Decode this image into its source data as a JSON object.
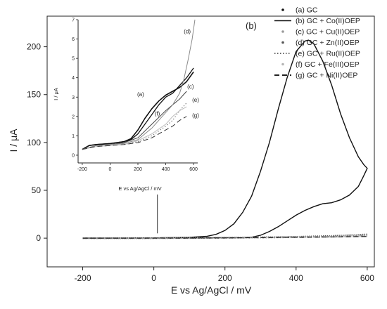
{
  "chart_data": [
    {
      "type": "line",
      "role": "main",
      "xlabel": "E vs Ag/AgCl / mV",
      "ylabel": "I / μA",
      "xlim": [
        -300,
        620
      ],
      "ylim": [
        -30,
        232
      ],
      "xticks": [
        -200,
        0,
        200,
        400,
        600
      ],
      "xtick_labels": [
        "-200",
        "0",
        "200",
        "400",
        "600"
      ],
      "yticks": [
        0,
        50,
        100,
        150,
        200
      ],
      "ytick_labels": [
        "0",
        "50",
        "100",
        "150",
        "200"
      ],
      "panel_label": "(b)",
      "legend_position": "top-right",
      "series": [
        {
          "name": "(a) GC",
          "color": "#111111",
          "style": "dots",
          "x": [
            -200,
            -100,
            0,
            100,
            200,
            300,
            400,
            500,
            600
          ],
          "y": [
            0,
            0,
            0,
            0.2,
            0.5,
            0.8,
            1.3,
            2.0,
            3.0
          ]
        },
        {
          "name": "(b) GC + Co(II)OEP",
          "color": "#111111",
          "style": "solid",
          "x": [
            -200,
            -100,
            0,
            100,
            150,
            175,
            200,
            225,
            250,
            275,
            300,
            325,
            350,
            375,
            400,
            425,
            435,
            450,
            475,
            500,
            525,
            550,
            575,
            590,
            600,
            590,
            575,
            550,
            525,
            500,
            475,
            450,
            425,
            400,
            375,
            350,
            325,
            300,
            275,
            250,
            -200
          ],
          "y": [
            0,
            0,
            0.3,
            0.8,
            2,
            4,
            8,
            15,
            27,
            44,
            70,
            100,
            135,
            168,
            195,
            206,
            207,
            203,
            185,
            160,
            130,
            105,
            85,
            77,
            73,
            65,
            54,
            45,
            40,
            37,
            36,
            33,
            29,
            24,
            18,
            12,
            7,
            3,
            1,
            0.5,
            0
          ]
        },
        {
          "name": "(c) GC + Cu(II)OEP",
          "color": "#9a9a9a",
          "style": "dots",
          "x": [
            -200,
            -100,
            0,
            100,
            200,
            300,
            400,
            500,
            600
          ],
          "y": [
            0,
            0,
            0,
            0.2,
            0.4,
            0.7,
            1.1,
            1.8,
            2.6
          ]
        },
        {
          "name": "(d) GC + Zn(II)OEP",
          "color": "#555555",
          "style": "dots",
          "x": [
            -200,
            -100,
            0,
            100,
            200,
            300,
            400,
            500,
            600
          ],
          "y": [
            0,
            0,
            0,
            0.2,
            0.5,
            0.9,
            1.5,
            2.4,
            4.0
          ]
        },
        {
          "name": "(e) GC + Ru(II)OEP",
          "color": "#666666",
          "style": "dotted",
          "x": [
            -200,
            -100,
            0,
            100,
            200,
            300,
            400,
            500,
            600
          ],
          "y": [
            0,
            0,
            0,
            0.1,
            0.3,
            0.6,
            1.0,
            1.5,
            2.2
          ]
        },
        {
          "name": "(f) GC + Fe(III)OEP",
          "color": "#b5b5b5",
          "style": "dots",
          "x": [
            -200,
            -100,
            0,
            100,
            200,
            300,
            400,
            500,
            600
          ],
          "y": [
            0,
            0,
            0,
            0.1,
            0.3,
            0.6,
            0.9,
            1.4,
            2.0
          ]
        },
        {
          "name": "(g) GC + Ni(II)OEP",
          "color": "#222222",
          "style": "dashed",
          "x": [
            -200,
            -100,
            0,
            100,
            200,
            300,
            400,
            500,
            600
          ],
          "y": [
            0,
            0,
            0,
            0.1,
            0.2,
            0.5,
            0.9,
            1.3,
            1.8
          ]
        }
      ],
      "annotations": [
        {
          "type": "arrow",
          "x": 10,
          "y_from": 5,
          "y_to": 95
        }
      ]
    },
    {
      "type": "line",
      "role": "inset",
      "xlabel": "E vs Ag/AgCl / mV",
      "ylabel": "I / μA",
      "xlim": [
        -230,
        630
      ],
      "ylim": [
        -0.4,
        7
      ],
      "xticks": [
        -200,
        0,
        200,
        400,
        600
      ],
      "xtick_labels": [
        "-200",
        "0",
        "200",
        "400",
        "600"
      ],
      "yticks": [
        0,
        1,
        2,
        3,
        4,
        5,
        6,
        7
      ],
      "ytick_labels": [
        "0",
        "1",
        "2",
        "3",
        "4",
        "5",
        "6",
        "7"
      ],
      "series": [
        {
          "label": "(a)",
          "color": "#111111",
          "style": "solid",
          "width": 1.6,
          "x": [
            -200,
            -150,
            -100,
            0,
            100,
            150,
            200,
            250,
            300,
            350,
            400,
            450,
            500,
            550,
            600
          ],
          "y": [
            0.3,
            0.5,
            0.55,
            0.6,
            0.7,
            0.85,
            1.3,
            1.9,
            2.4,
            2.8,
            3.1,
            3.3,
            3.5,
            3.8,
            4.3
          ]
        },
        {
          "label": "(b)",
          "color": "#111111",
          "style": "solid",
          "width": 1.3,
          "x": [
            -200,
            -150,
            -100,
            0,
            100,
            150,
            200,
            250,
            300,
            350,
            400,
            450,
            500,
            550,
            600
          ],
          "y": [
            0.3,
            0.5,
            0.55,
            0.6,
            0.7,
            0.8,
            1.1,
            1.6,
            2.1,
            2.6,
            3.0,
            3.2,
            3.6,
            4.0,
            4.5
          ]
        },
        {
          "label": "(c)",
          "color": "#444444",
          "style": "solid",
          "width": 1.0,
          "x": [
            -200,
            -100,
            0,
            100,
            200,
            300,
            400,
            450,
            500,
            550
          ],
          "y": [
            0.3,
            0.5,
            0.55,
            0.65,
            0.9,
            1.6,
            2.3,
            2.6,
            2.9,
            3.3
          ]
        },
        {
          "label": "(d)",
          "color": "#8a8a8a",
          "style": "solid",
          "width": 1.0,
          "x": [
            -200,
            -100,
            0,
            100,
            200,
            300,
            400,
            450,
            500,
            530,
            560,
            590,
            610
          ],
          "y": [
            0.3,
            0.5,
            0.55,
            0.6,
            0.8,
            1.4,
            2.2,
            2.6,
            3.2,
            3.9,
            4.9,
            6.0,
            7.0
          ]
        },
        {
          "label": "(e)",
          "color": "#777777",
          "style": "dotted",
          "width": 1.1,
          "x": [
            -200,
            -100,
            0,
            100,
            200,
            300,
            400,
            450,
            500,
            550
          ],
          "y": [
            0.3,
            0.45,
            0.5,
            0.55,
            0.7,
            1.0,
            1.5,
            1.8,
            2.3,
            2.7
          ]
        },
        {
          "label": "(f)",
          "color": "#bbbbbb",
          "style": "solid",
          "width": 1.0,
          "x": [
            -200,
            -100,
            0,
            100,
            200,
            300,
            400,
            450,
            500,
            550
          ],
          "y": [
            0.3,
            0.45,
            0.5,
            0.55,
            0.75,
            1.1,
            1.6,
            2.0,
            2.3,
            2.5
          ]
        },
        {
          "label": "(g)",
          "color": "#333333",
          "style": "dashed",
          "width": 1.0,
          "x": [
            -200,
            -100,
            0,
            100,
            200,
            300,
            400,
            450,
            500,
            550
          ],
          "y": [
            0.3,
            0.45,
            0.5,
            0.55,
            0.65,
            0.9,
            1.3,
            1.5,
            1.8,
            2.0
          ]
        }
      ],
      "curve_labels": [
        {
          "text": "(a)",
          "x": 195,
          "y": 3.05
        },
        {
          "text": "(c)",
          "x": 555,
          "y": 3.45
        },
        {
          "text": "(d)",
          "x": 530,
          "y": 6.3
        },
        {
          "text": "(e)",
          "x": 590,
          "y": 2.75
        },
        {
          "text": "(f)",
          "x": 320,
          "y": 2.05
        },
        {
          "text": "(g)",
          "x": 590,
          "y": 1.95
        }
      ]
    }
  ]
}
